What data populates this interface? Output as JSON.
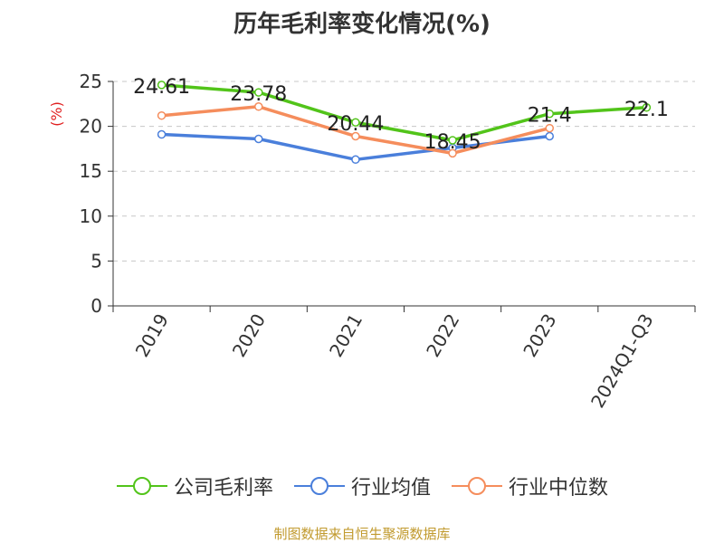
{
  "chart_data": {
    "type": "line",
    "title": "历年毛利率变化情况(%)",
    "ylabel": "(%)",
    "xlabel": "",
    "categories": [
      "2019",
      "2020",
      "2021",
      "2022",
      "2023",
      "2024Q1-Q3"
    ],
    "ylim": [
      0,
      25
    ],
    "yticks": [
      0,
      5,
      10,
      15,
      20,
      25
    ],
    "grid": true,
    "legend_position": "bottom",
    "series": [
      {
        "name": "公司毛利率",
        "color": "#52c41a",
        "values": [
          24.61,
          23.78,
          20.44,
          18.45,
          21.4,
          22.1
        ],
        "labels": [
          "24.61",
          "23.78",
          "20.44",
          "18.45",
          "21.4",
          "22.1"
        ]
      },
      {
        "name": "行业均值",
        "color": "#4a7fdb",
        "values": [
          19.1,
          18.6,
          16.3,
          17.6,
          18.9,
          null
        ]
      },
      {
        "name": "行业中位数",
        "color": "#f58d5c",
        "values": [
          21.2,
          22.2,
          18.9,
          17.0,
          19.8,
          null
        ]
      }
    ]
  },
  "source": "制图数据来自恒生聚源数据库"
}
